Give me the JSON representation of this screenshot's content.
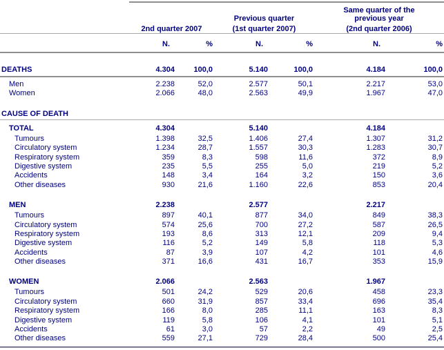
{
  "colors": {
    "text_navy": "#00007e",
    "line_gray": "#8f8f8f",
    "line_light_gray": "#a8a8a8",
    "bottom_line_dark": "#44446e"
  },
  "columns": {
    "group1": {
      "line1": "",
      "line2": "2nd quarter 2007"
    },
    "group2": {
      "line1": "Previous quarter",
      "line2": "(1st quarter 2007)"
    },
    "group3": {
      "line1": "Same quarter of the previous year",
      "line2": "(2nd quarter 2006)"
    },
    "subheaders": [
      "N.",
      "%",
      "N.",
      "%",
      "N.",
      "%"
    ]
  },
  "deaths": {
    "label": "DEATHS",
    "values": [
      "4.304",
      "100,0",
      "5.140",
      "100,0",
      "4.184",
      "100,0"
    ],
    "rows": [
      {
        "label": "Men",
        "values": [
          "2.238",
          "52,0",
          "2.577",
          "50,1",
          "2.217",
          "53,0"
        ]
      },
      {
        "label": "Women",
        "values": [
          "2.066",
          "48,0",
          "2.563",
          "49,9",
          "1.967",
          "47,0"
        ]
      }
    ]
  },
  "cause_of_death": {
    "label": "CAUSE OF DEATH",
    "sections": [
      {
        "label": "TOTAL",
        "values": [
          "4.304",
          "",
          "5.140",
          "",
          "4.184",
          ""
        ],
        "rows": [
          {
            "label": "Tumours",
            "values": [
              "1.398",
              "32,5",
              "1.406",
              "27,4",
              "1.307",
              "31,2"
            ]
          },
          {
            "label": "Circulatory system",
            "values": [
              "1.234",
              "28,7",
              "1.557",
              "30,3",
              "1.283",
              "30,7"
            ]
          },
          {
            "label": "Respiratory system",
            "values": [
              "359",
              "8,3",
              "598",
              "11,6",
              "372",
              "8,9"
            ]
          },
          {
            "label": "Digestive system",
            "values": [
              "235",
              "5,5",
              "255",
              "5,0",
              "219",
              "5,2"
            ]
          },
          {
            "label": "Accidents",
            "values": [
              "148",
              "3,4",
              "164",
              "3,2",
              "150",
              "3,6"
            ]
          },
          {
            "label": "Other diseases",
            "values": [
              "930",
              "21,6",
              "1.160",
              "22,6",
              "853",
              "20,4"
            ]
          }
        ]
      },
      {
        "label": "MEN",
        "values": [
          "2.238",
          "",
          "2.577",
          "",
          "2.217",
          ""
        ],
        "rows": [
          {
            "label": "Tumours",
            "values": [
              "897",
              "40,1",
              "877",
              "34,0",
              "849",
              "38,3"
            ]
          },
          {
            "label": "Circulatory system",
            "values": [
              "574",
              "25,6",
              "700",
              "27,2",
              "587",
              "26,5"
            ]
          },
          {
            "label": "Respiratory system",
            "values": [
              "193",
              "8,6",
              "313",
              "12,1",
              "209",
              "9,4"
            ]
          },
          {
            "label": "Digestive system",
            "values": [
              "116",
              "5,2",
              "149",
              "5,8",
              "118",
              "5,3"
            ]
          },
          {
            "label": "Accidents",
            "values": [
              "87",
              "3,9",
              "107",
              "4,2",
              "101",
              "4,6"
            ]
          },
          {
            "label": "Other diseases",
            "values": [
              "371",
              "16,6",
              "431",
              "16,7",
              "353",
              "15,9"
            ]
          }
        ]
      },
      {
        "label": "WOMEN",
        "values": [
          "2.066",
          "",
          "2.563",
          "",
          "1.967",
          ""
        ],
        "rows": [
          {
            "label": "Tumours",
            "values": [
              "501",
              "24,2",
              "529",
              "20,6",
              "458",
              "23,3"
            ]
          },
          {
            "label": "Circulatory system",
            "values": [
              "660",
              "31,9",
              "857",
              "33,4",
              "696",
              "35,4"
            ]
          },
          {
            "label": "Respiratory system",
            "values": [
              "166",
              "8,0",
              "285",
              "11,1",
              "163",
              "8,3"
            ]
          },
          {
            "label": "Digestive system",
            "values": [
              "119",
              "5,8",
              "106",
              "4,1",
              "101",
              "5,1"
            ]
          },
          {
            "label": "Accidents",
            "values": [
              "61",
              "3,0",
              "57",
              "2,2",
              "49",
              "2,5"
            ]
          },
          {
            "label": "Other diseases",
            "values": [
              "559",
              "27,1",
              "729",
              "28,4",
              "500",
              "25,4"
            ]
          }
        ]
      }
    ]
  }
}
